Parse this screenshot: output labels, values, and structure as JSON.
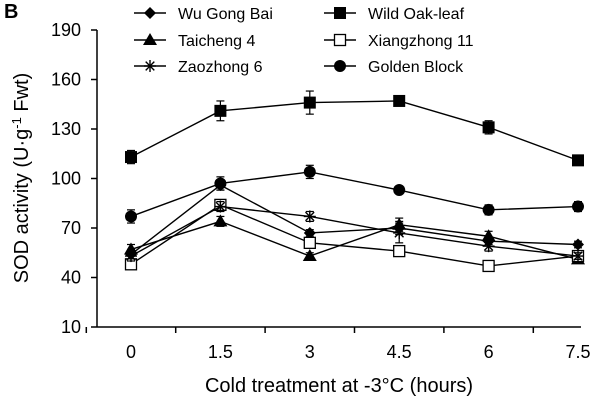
{
  "chart_data": {
    "type": "line",
    "panel_label": "B",
    "title": "",
    "xlabel": "Cold treatment at -3°C (hours)",
    "ylabel_main": "SOD activity (U·g",
    "ylabel_sup": "-1",
    "ylabel_end": " Fwt)",
    "categories": [
      "0",
      "1.5",
      "3",
      "4.5",
      "6",
      "7.5"
    ],
    "x": [
      0,
      1.5,
      3,
      4.5,
      6,
      7.5
    ],
    "ylim": [
      10,
      190
    ],
    "yticks": [
      10,
      40,
      70,
      100,
      130,
      160,
      190
    ],
    "grid": false,
    "legend_position": "top",
    "series": [
      {
        "name": "Wu Gong Bai",
        "marker": "diamond",
        "values": [
          54,
          96,
          67,
          70,
          62,
          60
        ],
        "errors": [
          3,
          3,
          2,
          4,
          2,
          2
        ]
      },
      {
        "name": "Wild Oak-leaf",
        "marker": "square",
        "values": [
          113,
          141,
          146,
          147,
          131,
          111
        ],
        "errors": [
          4,
          6,
          7,
          3,
          4,
          3
        ]
      },
      {
        "name": "Taicheng 4",
        "marker": "triangle",
        "values": [
          57,
          74,
          53,
          72,
          65,
          51
        ],
        "errors": [
          3,
          3,
          2,
          4,
          3,
          2
        ]
      },
      {
        "name": "Xiangzhong 11",
        "marker": "open-square",
        "values": [
          48,
          84,
          61,
          56,
          47,
          53
        ],
        "errors": [
          2,
          3,
          3,
          2,
          2,
          2
        ]
      },
      {
        "name": "Zaozhong 6",
        "marker": "star",
        "values": [
          53,
          83,
          77,
          67,
          59,
          53
        ],
        "errors": [
          3,
          3,
          3,
          6,
          3,
          2
        ]
      },
      {
        "name": "Golden Block",
        "marker": "circle",
        "values": [
          77,
          97,
          104,
          93,
          81,
          83
        ],
        "errors": [
          4,
          4,
          4,
          2,
          3,
          3
        ]
      }
    ]
  }
}
